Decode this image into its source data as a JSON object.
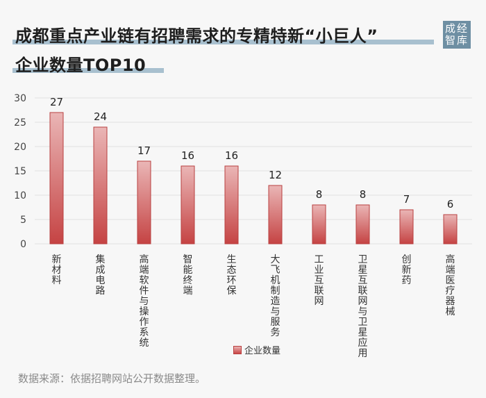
{
  "title": {
    "line1": "成都重点产业链有招聘需求的专精特新“小巨人”",
    "line2": "企业数量TOP10"
  },
  "logo": {
    "line1": "成经",
    "line2": "智库"
  },
  "source": "数据来源：依据招聘网站公开数据整理。",
  "colors": {
    "bar_top": "#eab6b6",
    "bar_bottom": "#c54343",
    "bar_edge": "#b84040",
    "highlight": "#a8c0cf",
    "logo_bg": "#6e8fa3"
  },
  "chart_data": {
    "type": "bar",
    "categories": [
      "新材料",
      "集成电路",
      "高端软件与操作系统",
      "智能终端",
      "生态环保",
      "大飞机制造与服务",
      "工业互联网",
      "卫星互联网与卫星应用",
      "创新药",
      "高端医疗器械"
    ],
    "series": [
      {
        "name": "企业数量",
        "values": [
          27,
          24,
          17,
          16,
          16,
          12,
          8,
          8,
          7,
          6
        ]
      }
    ],
    "ylim": [
      0,
      30
    ],
    "yticks": [
      0,
      5,
      10,
      15,
      20,
      25,
      30
    ],
    "grid": true,
    "legend": "bottom-center",
    "xlabel": "",
    "ylabel": ""
  }
}
